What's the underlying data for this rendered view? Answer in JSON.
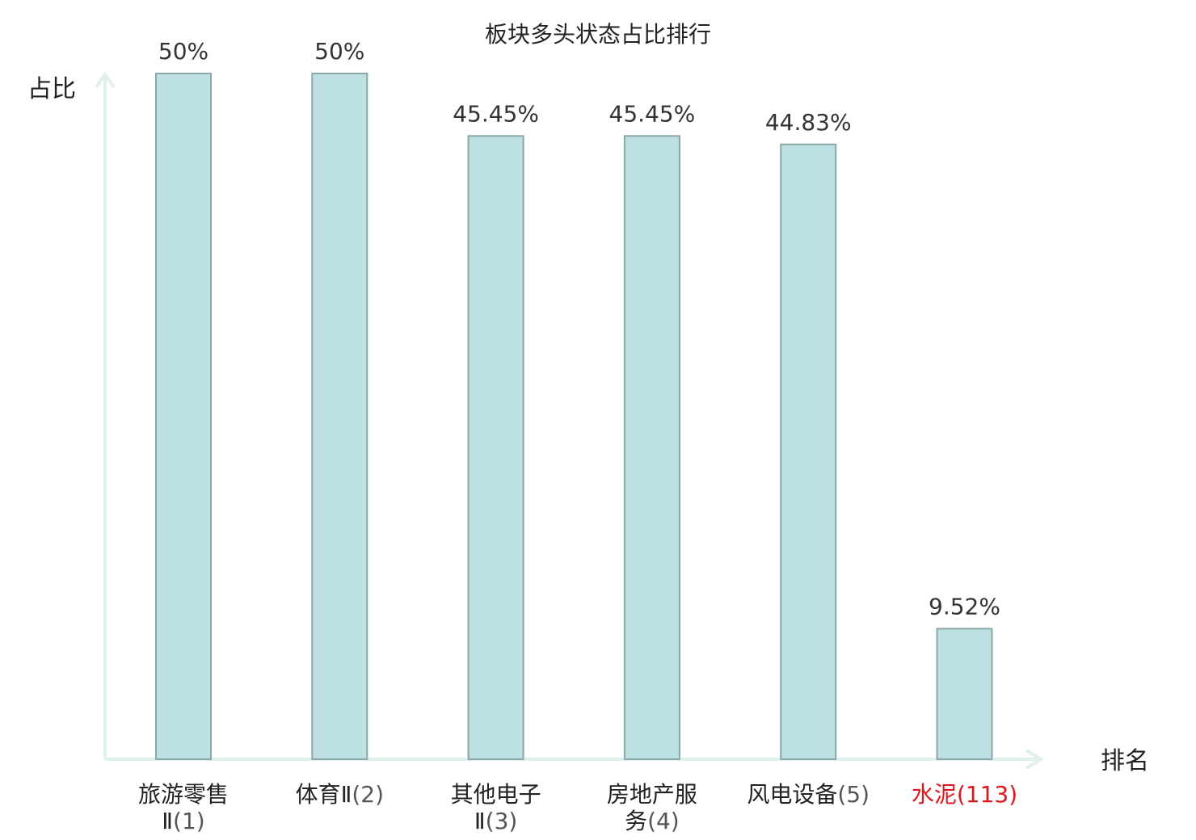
{
  "chart_data": {
    "type": "bar",
    "title": "板块多头状态占比排行",
    "ylabel": "占比",
    "xlabel": "排名",
    "ylim": [
      0,
      50
    ],
    "categories": [
      {
        "name": [
          "旅游零售",
          "Ⅱ"
        ],
        "rank": "(1)",
        "highlight": false
      },
      {
        "name": [
          "体育Ⅱ"
        ],
        "rank": "(2)",
        "highlight": false
      },
      {
        "name": [
          "其他电子",
          "Ⅱ"
        ],
        "rank": "(3)",
        "highlight": false
      },
      {
        "name": [
          "房地产服",
          "务"
        ],
        "rank": "(4)",
        "highlight": false
      },
      {
        "name": [
          "风电设备"
        ],
        "rank": "(5)",
        "highlight": false
      },
      {
        "name": [
          "水泥"
        ],
        "rank": "(113)",
        "highlight": true
      }
    ],
    "values": [
      50,
      50,
      45.45,
      45.45,
      44.83,
      9.52
    ],
    "value_labels": [
      "50%",
      "50%",
      "45.45%",
      "45.45%",
      "44.83%",
      "9.52%"
    ],
    "grid": false,
    "colors": {
      "bar_fill": "#bde0e3",
      "bar_stroke": "#8aa8ab",
      "axis": "#dff0ee",
      "highlight": "#e0151c",
      "normal_label": "#222222",
      "rank_label": "#555555"
    }
  }
}
